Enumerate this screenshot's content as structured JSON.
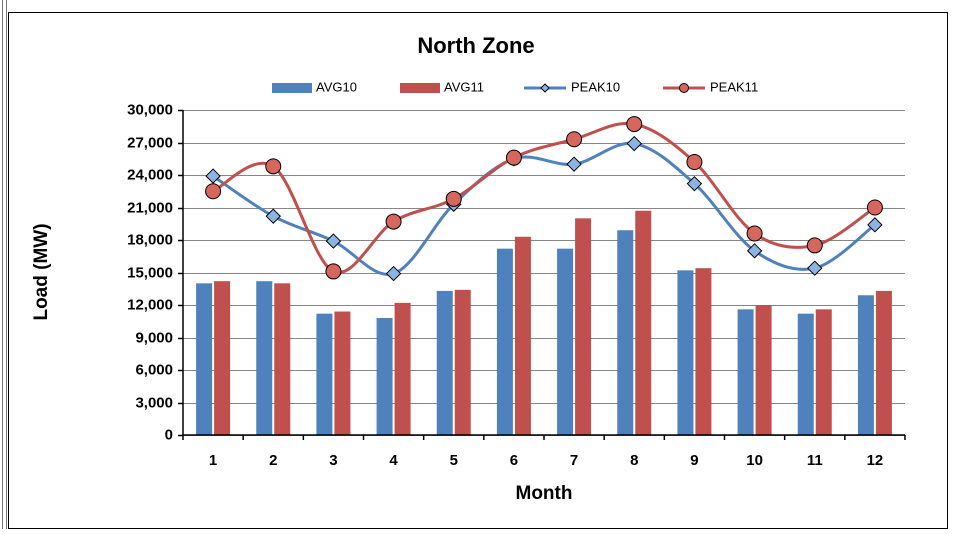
{
  "chart_data": {
    "type": "combo",
    "title": "North Zone",
    "x_label": "Month",
    "y_label": "Load (MW)",
    "categories": [
      "1",
      "2",
      "3",
      "4",
      "5",
      "6",
      "7",
      "8",
      "9",
      "10",
      "11",
      "12"
    ],
    "series": [
      {
        "name": "AVG10",
        "type": "bar",
        "color": "#4f81bd",
        "values": [
          14000,
          14200,
          11200,
          10800,
          13300,
          17200,
          17200,
          18900,
          15200,
          11600,
          11200,
          12900
        ]
      },
      {
        "name": "AVG11",
        "type": "bar",
        "color": "#c0504d",
        "values": [
          14200,
          14000,
          11400,
          12200,
          13400,
          18300,
          20000,
          20700,
          15400,
          12000,
          11600,
          13300
        ]
      },
      {
        "name": "PEAK10",
        "type": "line",
        "color": "#4f81bd",
        "marker": "diamond",
        "smooth": true,
        "values": [
          23900,
          20200,
          17900,
          14900,
          21300,
          25500,
          25000,
          26900,
          23200,
          17000,
          15400,
          19400
        ]
      },
      {
        "name": "PEAK11",
        "type": "line",
        "color": "#c0504d",
        "marker": "circle",
        "smooth": true,
        "values": [
          22500,
          24800,
          15100,
          19700,
          21800,
          25600,
          27300,
          28700,
          25200,
          18600,
          17500,
          21000
        ]
      }
    ],
    "ylim": [
      0,
      30000
    ],
    "yticks": [
      0,
      {
        "value": 3000,
        "label": "3,000"
      },
      {
        "value": 6000,
        "label": "6,000"
      },
      {
        "value": 9000,
        "label": "9,000"
      },
      {
        "value": 12000,
        "label": "12,000"
      },
      {
        "value": 15000,
        "label": "15,000"
      },
      {
        "value": 18000,
        "label": "18,000"
      },
      {
        "value": 21000,
        "label": "21,000"
      },
      {
        "value": 24000,
        "label": "24,000"
      },
      {
        "value": 27000,
        "label": "27,000"
      },
      {
        "value": 30000,
        "label": "30,000"
      }
    ],
    "grid": true,
    "legend": "top"
  }
}
